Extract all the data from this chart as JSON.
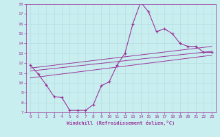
{
  "xlabel": "Windchill (Refroidissement éolien,°C)",
  "background_color": "#c8eef0",
  "line_color": "#993399",
  "xlim": [
    -0.5,
    23.5
  ],
  "ylim": [
    7,
    18
  ],
  "xticks": [
    0,
    1,
    2,
    3,
    4,
    5,
    6,
    7,
    8,
    9,
    10,
    11,
    12,
    13,
    14,
    15,
    16,
    17,
    18,
    19,
    20,
    21,
    22,
    23
  ],
  "yticks": [
    7,
    8,
    9,
    10,
    11,
    12,
    13,
    14,
    15,
    16,
    17,
    18
  ],
  "line1_x": [
    0,
    1,
    2,
    3,
    4,
    5,
    6,
    7,
    8,
    9,
    10,
    11,
    12,
    13,
    14,
    15,
    16,
    17,
    18,
    19,
    20,
    21,
    22,
    23
  ],
  "line1_y": [
    11.8,
    10.9,
    9.8,
    8.6,
    8.5,
    7.2,
    7.2,
    7.2,
    7.8,
    9.7,
    10.1,
    11.8,
    13.0,
    16.0,
    18.2,
    17.2,
    15.2,
    15.5,
    15.0,
    14.0,
    13.7,
    13.7,
    13.1,
    13.1
  ],
  "trend1_x": [
    0,
    23
  ],
  "trend1_y": [
    11.5,
    13.7
  ],
  "trend2_x": [
    0,
    23
  ],
  "trend2_y": [
    11.2,
    13.2
  ],
  "trend3_x": [
    0,
    23
  ],
  "trend3_y": [
    10.5,
    12.8
  ]
}
